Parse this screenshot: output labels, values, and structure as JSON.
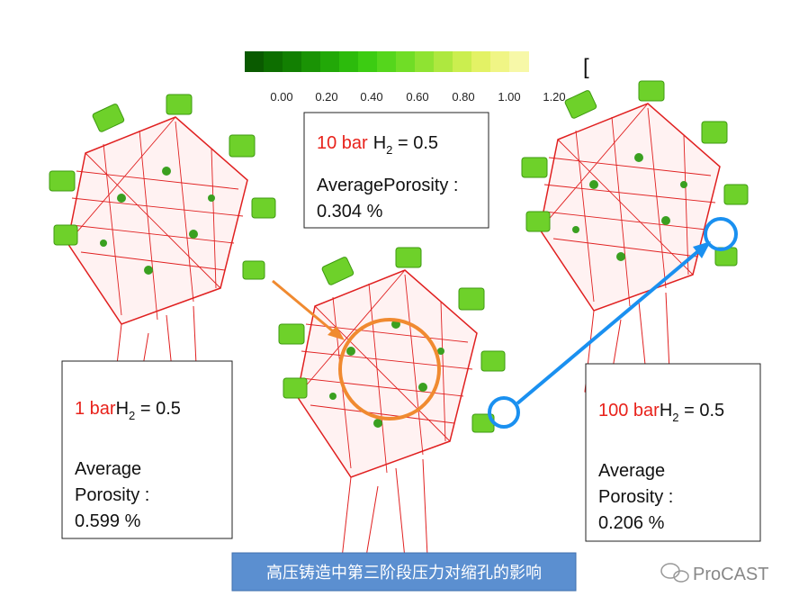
{
  "colorbar": {
    "ticks": [
      "0.00",
      "0.20",
      "0.40",
      "0.60",
      "0.80",
      "1.00",
      "1.20"
    ],
    "bracket": "["
  },
  "boxes": [
    {
      "pressure": "10 bar",
      "gas": "H",
      "sub": "2",
      "rest": " = 0.5",
      "label": "AveragePorosity :",
      "value": "0.304 %"
    },
    {
      "pressure": "1 bar",
      "gas": "H",
      "sub": "2",
      "rest": " = 0.5",
      "label_lines": [
        "Average",
        "Porosity :"
      ],
      "value": "0.599 %"
    },
    {
      "pressure": "100 bar",
      "gas": "H",
      "sub": "2",
      "rest": " = 0.5",
      "label_lines": [
        "Average",
        "Porosity :"
      ],
      "value": "0.206 %"
    }
  ],
  "caption": "高压铸造中第三阶段压力对缩孔的影响",
  "watermark": "ProCAST"
}
